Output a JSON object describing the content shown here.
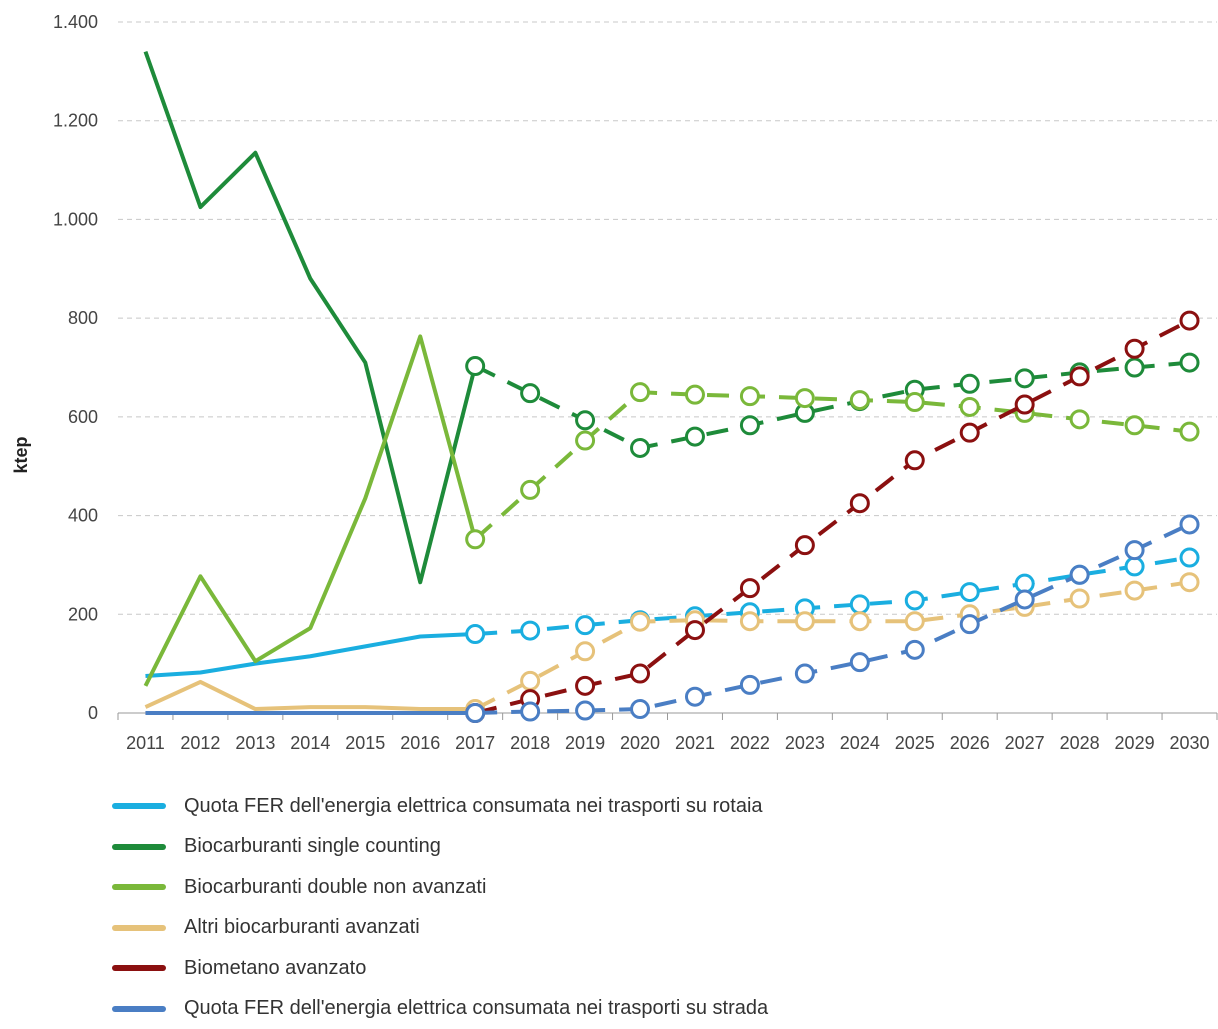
{
  "chart_data": {
    "type": "line",
    "ylabel": "ktep",
    "xlabel": "",
    "ylim": [
      0,
      1400
    ],
    "yticks": [
      0,
      200,
      400,
      600,
      800,
      1000,
      1200,
      1400
    ],
    "ytick_labels": [
      "0",
      "200",
      "400",
      "600",
      "800",
      "1.000",
      "1.200",
      "1.400"
    ],
    "grid": true,
    "legend_position": "bottom",
    "categories": [
      "2011",
      "2012",
      "2013",
      "2014",
      "2015",
      "2016",
      "2017",
      "2018",
      "2019",
      "2020",
      "2021",
      "2022",
      "2023",
      "2024",
      "2025",
      "2026",
      "2027",
      "2028",
      "2029",
      "2030"
    ],
    "historical_end": "2017",
    "projection_start": "2017",
    "series": [
      {
        "name": "Quota FER dell'energia elettrica consumata nei trasporti su rotaia",
        "color": "#1aaee0",
        "values": [
          75,
          82,
          100,
          115,
          135,
          155,
          160,
          167,
          178,
          188,
          196,
          204,
          212,
          220,
          228,
          245,
          262,
          280,
          297,
          315
        ]
      },
      {
        "name": "Biocarburanti single counting",
        "color": "#1e8b3a",
        "values": [
          1340,
          1025,
          1135,
          880,
          710,
          265,
          703,
          648,
          593,
          537,
          560,
          583,
          608,
          632,
          655,
          667,
          678,
          690,
          700,
          710
        ]
      },
      {
        "name": "Biocarburanti double non avanzati",
        "color": "#7ab83a",
        "values": [
          55,
          277,
          105,
          172,
          435,
          763,
          352,
          452,
          552,
          650,
          645,
          642,
          638,
          634,
          630,
          620,
          608,
          595,
          583,
          570
        ]
      },
      {
        "name": "Altri biocarburanti avanzati",
        "color": "#e6c27a",
        "values": [
          12,
          63,
          8,
          12,
          12,
          8,
          8,
          65,
          125,
          185,
          188,
          186,
          186,
          186,
          186,
          200,
          215,
          232,
          248,
          265
        ]
      },
      {
        "name": "Biometano avanzato",
        "color": "#8b1010",
        "values": [
          0,
          0,
          0,
          0,
          0,
          0,
          0,
          28,
          55,
          80,
          168,
          253,
          340,
          425,
          512,
          568,
          625,
          682,
          738,
          795
        ]
      },
      {
        "name": "Quota FER dell'energia elettrica consumata nei trasporti su strada",
        "color": "#4a7ec4",
        "values": [
          0,
          0,
          0,
          0,
          0,
          0,
          0,
          3,
          5,
          8,
          33,
          57,
          80,
          103,
          128,
          180,
          230,
          280,
          330,
          382
        ]
      }
    ]
  }
}
